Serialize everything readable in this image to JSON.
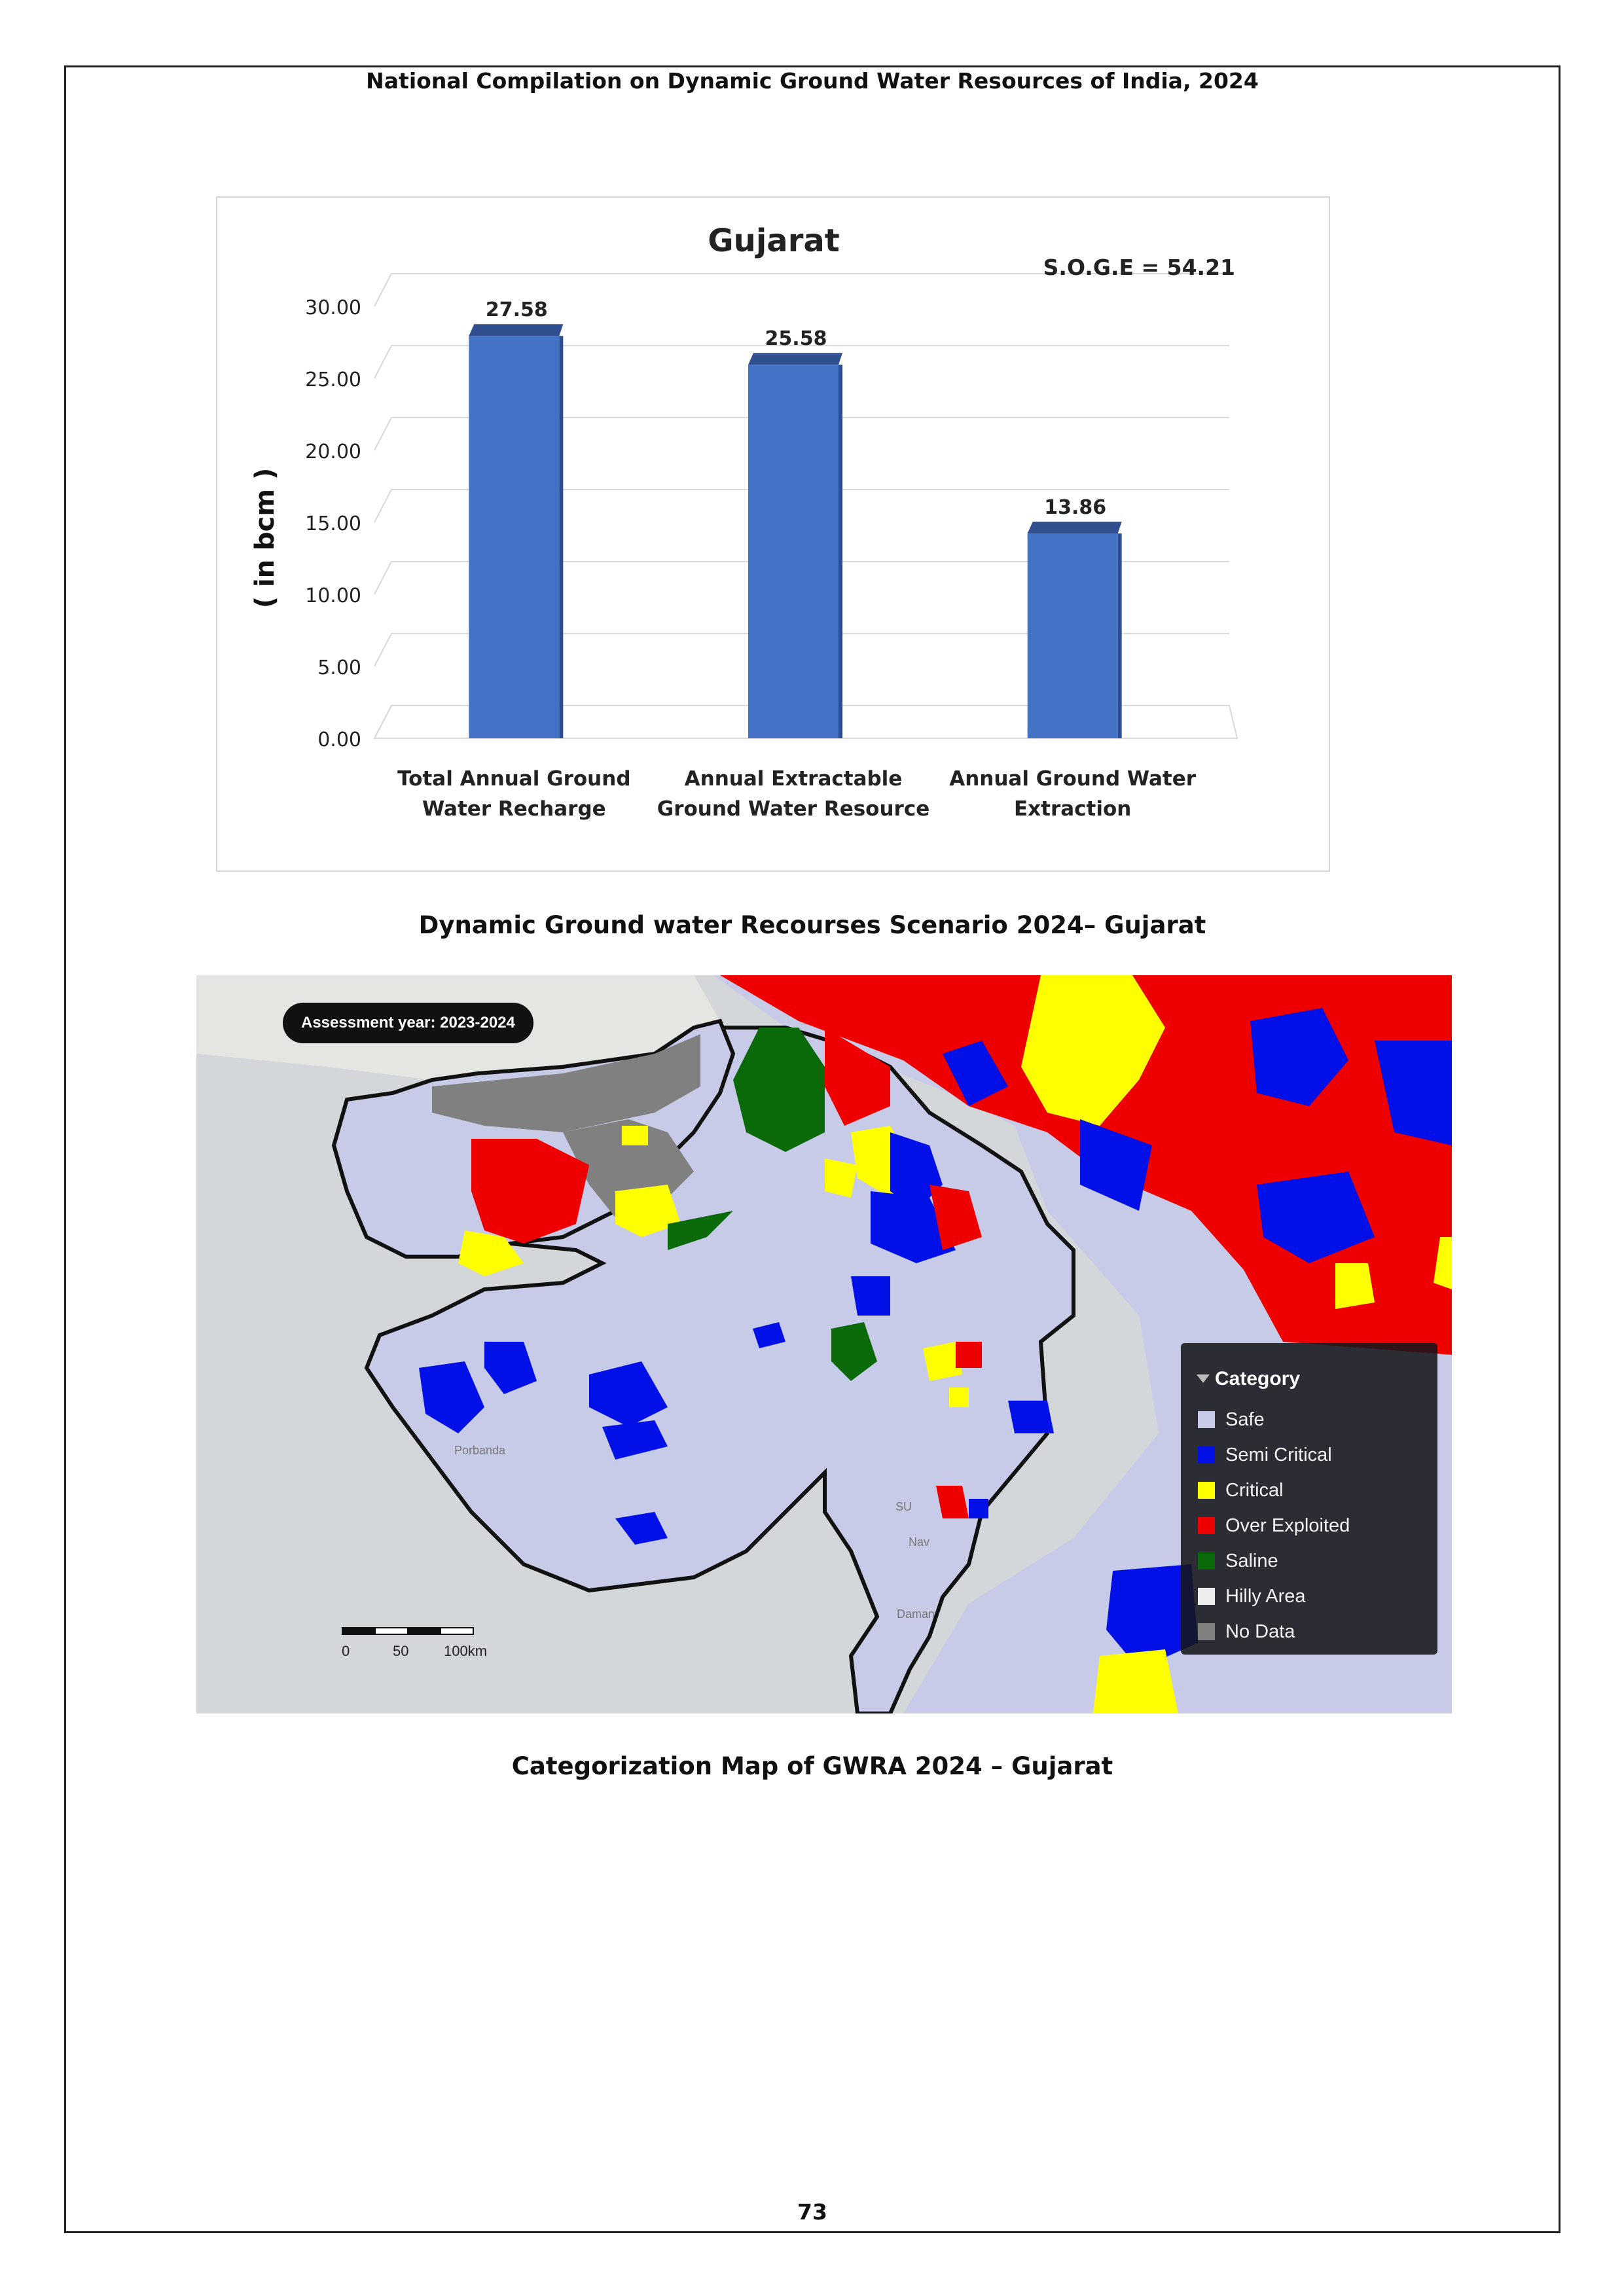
{
  "header": {
    "title": "National Compilation on Dynamic Ground Water Resources of India, 2024"
  },
  "chart_data": {
    "type": "bar",
    "title": "Gujarat",
    "annotation": "S.O.G.E = 54.21",
    "ylabel": "( in bcm )",
    "xlabel": "",
    "ylim": [
      0,
      30
    ],
    "yticks": [
      "0.00",
      "5.00",
      "10.00",
      "15.00",
      "20.00",
      "25.00",
      "30.00"
    ],
    "categories": [
      [
        "Total Annual  Ground",
        "Water Recharge"
      ],
      [
        "Annual Extractable",
        "Ground Water Resource"
      ],
      [
        "Annual Ground Water",
        "Extraction"
      ]
    ],
    "values": [
      27.58,
      25.58,
      13.86
    ],
    "value_labels": [
      "27.58",
      "25.58",
      "13.86"
    ],
    "bar_color": "#4472c4",
    "bar_top_color": "#2f4f8f",
    "grid": true
  },
  "captions": {
    "chart": "Dynamic Ground water Recourses Scenario 2024– Gujarat",
    "map": "Categorization Map of GWRA 2024 – Gujarat"
  },
  "map": {
    "assessment_label": "Assessment year: 2023-2024",
    "scale_labels": [
      "0",
      "50",
      "100km"
    ],
    "place_labels": [
      "Porbanda",
      "SU",
      "Nav",
      "Daman"
    ],
    "legend": {
      "title": "Category",
      "items": [
        {
          "label": "Safe",
          "color": "#c8cbe8"
        },
        {
          "label": "Semi Critical",
          "color": "#0010e6"
        },
        {
          "label": "Critical",
          "color": "#ffff00"
        },
        {
          "label": "Over Exploited",
          "color": "#ee0000"
        },
        {
          "label": "Saline",
          "color": "#0a6a0a"
        },
        {
          "label": "Hilly Area",
          "color": "#eeeeee"
        },
        {
          "label": "No Data",
          "color": "#808080"
        }
      ]
    }
  },
  "footer": {
    "page_number": "73"
  }
}
